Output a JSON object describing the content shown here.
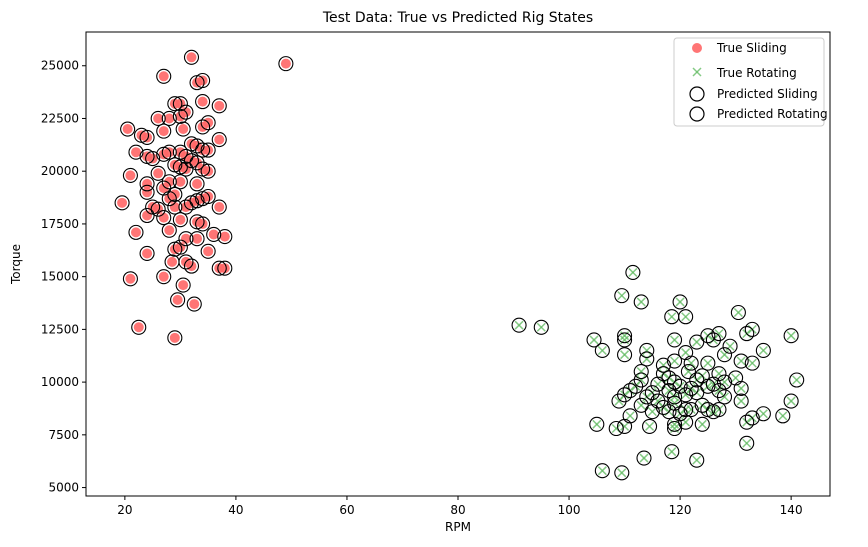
{
  "chart_data": {
    "type": "scatter",
    "title": "Test Data: True vs Predicted Rig States",
    "xlabel": "RPM",
    "ylabel": "Torque",
    "xlim": [
      13,
      147
    ],
    "ylim": [
      4600,
      26600
    ],
    "xticks": [
      20,
      40,
      60,
      80,
      100,
      120,
      140
    ],
    "yticks": [
      5000,
      7500,
      10000,
      12500,
      15000,
      17500,
      20000,
      22500,
      25000
    ],
    "grid": false,
    "legend_position": "top-right",
    "colors": {
      "sliding": "#ff6666",
      "rotating": "#5cb85c",
      "predicted_edge": "#000000"
    },
    "series": [
      {
        "name": "True Sliding",
        "marker": "circle",
        "points": [
          [
            32,
            25400
          ],
          [
            49,
            25100
          ],
          [
            27,
            24500
          ],
          [
            34,
            24300
          ],
          [
            33,
            24200
          ],
          [
            30,
            23200
          ],
          [
            34,
            23300
          ],
          [
            37,
            23100
          ],
          [
            29,
            23200
          ],
          [
            31,
            22800
          ],
          [
            30,
            22600
          ],
          [
            26,
            22500
          ],
          [
            28,
            22500
          ],
          [
            35,
            22300
          ],
          [
            34,
            22100
          ],
          [
            20.5,
            22000
          ],
          [
            27,
            21900
          ],
          [
            30.5,
            22000
          ],
          [
            23,
            21700
          ],
          [
            24,
            21600
          ],
          [
            37,
            21500
          ],
          [
            32,
            21300
          ],
          [
            33,
            21200
          ],
          [
            34,
            21000
          ],
          [
            35,
            21000
          ],
          [
            22,
            20900
          ],
          [
            27,
            20800
          ],
          [
            28,
            20900
          ],
          [
            30,
            20900
          ],
          [
            31,
            20700
          ],
          [
            24,
            20700
          ],
          [
            25,
            20600
          ],
          [
            32,
            20500
          ],
          [
            33,
            20400
          ],
          [
            29,
            20300
          ],
          [
            30,
            20200
          ],
          [
            34,
            20100
          ],
          [
            35,
            20000
          ],
          [
            31,
            20100
          ],
          [
            26,
            19900
          ],
          [
            21,
            19800
          ],
          [
            28,
            19500
          ],
          [
            30,
            19500
          ],
          [
            24,
            19400
          ],
          [
            33,
            19400
          ],
          [
            27,
            19200
          ],
          [
            24,
            19000
          ],
          [
            29,
            18900
          ],
          [
            28,
            18700
          ],
          [
            34,
            18700
          ],
          [
            35,
            18800
          ],
          [
            33,
            18600
          ],
          [
            32,
            18500
          ],
          [
            19.5,
            18500
          ],
          [
            25,
            18300
          ],
          [
            26,
            18200
          ],
          [
            37,
            18300
          ],
          [
            31,
            18300
          ],
          [
            29,
            18300
          ],
          [
            24,
            17900
          ],
          [
            27,
            17800
          ],
          [
            30,
            17700
          ],
          [
            33,
            17600
          ],
          [
            34,
            17500
          ],
          [
            28,
            17200
          ],
          [
            22,
            17100
          ],
          [
            36,
            17000
          ],
          [
            38,
            16900
          ],
          [
            31,
            16800
          ],
          [
            33,
            16800
          ],
          [
            30,
            16400
          ],
          [
            29,
            16300
          ],
          [
            24,
            16100
          ],
          [
            35,
            16200
          ],
          [
            31,
            15700
          ],
          [
            28.5,
            15700
          ],
          [
            32,
            15500
          ],
          [
            37,
            15400
          ],
          [
            38,
            15400
          ],
          [
            27,
            15000
          ],
          [
            21,
            14900
          ],
          [
            30.5,
            14600
          ],
          [
            29.5,
            13900
          ],
          [
            32.5,
            13700
          ],
          [
            22.5,
            12600
          ],
          [
            29,
            12100
          ]
        ]
      },
      {
        "name": "True Rotating",
        "marker": "x",
        "points": [
          [
            111.5,
            15200
          ],
          [
            109.5,
            14100
          ],
          [
            113,
            13800
          ],
          [
            120,
            13800
          ],
          [
            130.5,
            13300
          ],
          [
            118.5,
            13100
          ],
          [
            121,
            13100
          ],
          [
            91,
            12700
          ],
          [
            95,
            12600
          ],
          [
            133,
            12500
          ],
          [
            132,
            12300
          ],
          [
            110,
            12200
          ],
          [
            127,
            12300
          ],
          [
            125,
            12200
          ],
          [
            104.5,
            12000
          ],
          [
            110,
            12000
          ],
          [
            119,
            12000
          ],
          [
            123,
            11900
          ],
          [
            126,
            12000
          ],
          [
            140,
            12200
          ],
          [
            129,
            11700
          ],
          [
            106,
            11500
          ],
          [
            114,
            11500
          ],
          [
            121,
            11400
          ],
          [
            128,
            11300
          ],
          [
            135,
            11500
          ],
          [
            110,
            11300
          ],
          [
            114,
            11100
          ],
          [
            119,
            11000
          ],
          [
            131,
            11000
          ],
          [
            122,
            10900
          ],
          [
            125,
            10900
          ],
          [
            133,
            10900
          ],
          [
            117,
            10800
          ],
          [
            121.5,
            10500
          ],
          [
            113,
            10500
          ],
          [
            117,
            10400
          ],
          [
            124,
            10300
          ],
          [
            127,
            10400
          ],
          [
            113,
            10100
          ],
          [
            118,
            10200
          ],
          [
            119,
            10000
          ],
          [
            123,
            10100
          ],
          [
            128,
            10000
          ],
          [
            130,
            10200
          ],
          [
            141,
            10100
          ],
          [
            112,
            9800
          ],
          [
            116,
            9900
          ],
          [
            120,
            9800
          ],
          [
            125,
            9800
          ],
          [
            126,
            9900
          ],
          [
            122,
            9700
          ],
          [
            131,
            9700
          ],
          [
            111,
            9600
          ],
          [
            115,
            9500
          ],
          [
            118,
            9600
          ],
          [
            123,
            9500
          ],
          [
            127,
            9600
          ],
          [
            110,
            9400
          ],
          [
            114,
            9300
          ],
          [
            119,
            9300
          ],
          [
            121,
            9400
          ],
          [
            128,
            9300
          ],
          [
            131,
            9100
          ],
          [
            140,
            9100
          ],
          [
            109,
            9100
          ],
          [
            116,
            9100
          ],
          [
            119,
            9000
          ],
          [
            124,
            8900
          ],
          [
            113,
            8900
          ],
          [
            117,
            8800
          ],
          [
            121,
            8700
          ],
          [
            125,
            8700
          ],
          [
            127,
            8700
          ],
          [
            115,
            8600
          ],
          [
            118,
            8600
          ],
          [
            122,
            8700
          ],
          [
            126,
            8600
          ],
          [
            135,
            8500
          ],
          [
            138.5,
            8400
          ],
          [
            111,
            8400
          ],
          [
            120,
            8500
          ],
          [
            133,
            8300
          ],
          [
            132,
            8100
          ],
          [
            105,
            8000
          ],
          [
            110,
            7900
          ],
          [
            114.5,
            7900
          ],
          [
            119,
            8000
          ],
          [
            121,
            8100
          ],
          [
            124,
            8000
          ],
          [
            119,
            7800
          ],
          [
            108.5,
            7800
          ],
          [
            132,
            7100
          ],
          [
            118.5,
            6700
          ],
          [
            113.5,
            6400
          ],
          [
            123,
            6300
          ],
          [
            106,
            5800
          ],
          [
            109.5,
            5700
          ]
        ]
      },
      {
        "name": "Predicted Sliding",
        "marker": "open-circle",
        "same_points_as": "True Sliding"
      },
      {
        "name": "Predicted Rotating",
        "marker": "open-circle",
        "same_points_as": "True Rotating"
      }
    ]
  }
}
